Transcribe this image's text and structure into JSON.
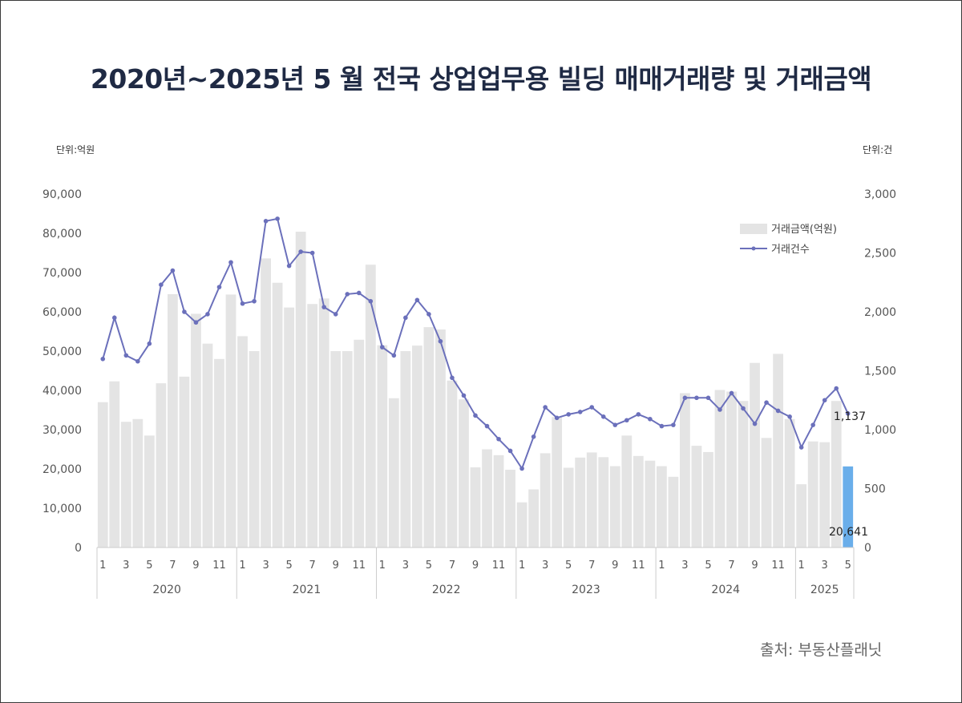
{
  "title": "2020년~2025년  5 월 전국 상업업무용 빌딩 매매거래량 및 거래금액",
  "unit_left": "단위:억원",
  "unit_right": "단위:건",
  "source": "출처: 부동산플래닛",
  "colors": {
    "bar": "#e4e4e4",
    "bar_highlight": "#6aaeea",
    "line": "#6b70bb",
    "title": "#1f2a44"
  },
  "chart_data": {
    "type": "bar+line",
    "title": "2020년~2025년  5 월 전국 상업업무용 빌딩 매매거래량 및 거래금액",
    "y_left": {
      "label": "단위:억원",
      "range": [
        0,
        90000
      ],
      "ticks": [
        "90,000",
        "80,000",
        "70,000",
        "60,000",
        "50,000",
        "40,000",
        "30,000",
        "20,000",
        "10,000",
        "0"
      ]
    },
    "y_right": {
      "label": "단위:건",
      "range": [
        0,
        3000
      ],
      "ticks": [
        "3,000",
        "2,500",
        "2,000",
        "1,500",
        "1,000",
        "500",
        "0"
      ]
    },
    "month_labels": [
      "1",
      "3",
      "5",
      "7",
      "9",
      "11"
    ],
    "years": [
      "2020",
      "2021",
      "2022",
      "2023",
      "2024",
      "2025"
    ],
    "months_per_year": [
      12,
      12,
      12,
      12,
      12,
      5
    ],
    "legend": {
      "position": "top-right",
      "bar": "거래금액(억원)",
      "line": "거래건수"
    },
    "series": [
      {
        "name": "거래금액(억원)",
        "type": "bar",
        "values": [
          37000,
          42300,
          32000,
          32700,
          28500,
          41800,
          64500,
          43500,
          59500,
          51900,
          48000,
          64400,
          53800,
          50000,
          73600,
          67400,
          61100,
          80400,
          62000,
          63400,
          50000,
          50000,
          52900,
          72000,
          51500,
          38000,
          50000,
          51400,
          56100,
          55500,
          42500,
          37700,
          20400,
          25000,
          23500,
          19800,
          11500,
          14800,
          24000,
          33200,
          20300,
          22900,
          24200,
          23000,
          20700,
          28500,
          23300,
          22100,
          20700,
          18000,
          39300,
          25900,
          24300,
          40100,
          39700,
          37300,
          47000,
          27900,
          49300,
          32700,
          16100,
          27000,
          26800,
          37300,
          20641
        ]
      },
      {
        "name": "거래건수",
        "type": "line",
        "values": [
          1600,
          1950,
          1630,
          1580,
          1730,
          2230,
          2350,
          2000,
          1910,
          1980,
          2210,
          2420,
          2070,
          2090,
          2770,
          2790,
          2390,
          2510,
          2500,
          2040,
          1980,
          2150,
          2160,
          2090,
          1700,
          1630,
          1950,
          2100,
          1980,
          1750,
          1440,
          1290,
          1120,
          1030,
          920,
          820,
          670,
          940,
          1190,
          1100,
          1130,
          1150,
          1190,
          1110,
          1040,
          1080,
          1130,
          1090,
          1030,
          1040,
          1270,
          1270,
          1270,
          1170,
          1310,
          1180,
          1050,
          1230,
          1160,
          1110,
          850,
          1040,
          1250,
          1350,
          1137
        ]
      }
    ],
    "data_labels": {
      "last_bar": "20,641",
      "last_line": "1,137"
    }
  }
}
